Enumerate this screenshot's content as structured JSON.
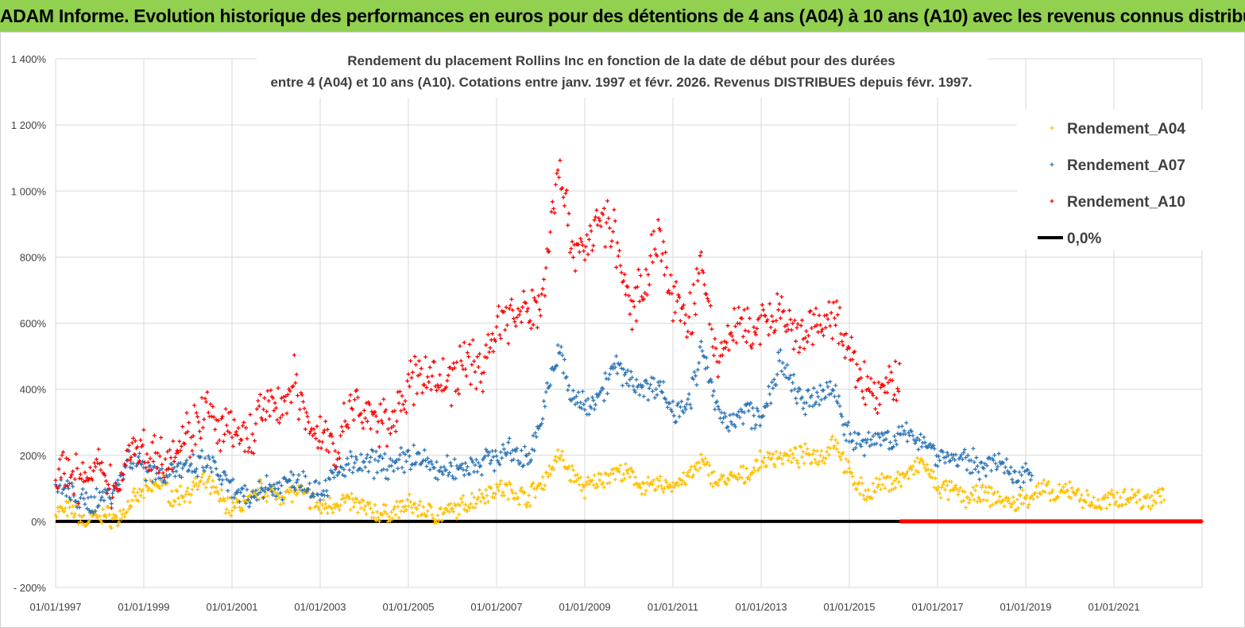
{
  "banner": {
    "text": "ADAM Informe. Evolution historique des performances en euros pour des détentions de 4 ans (A04) à 10 ans (A10) avec les revenus connus distribués",
    "background": "#92d050"
  },
  "chart_data": {
    "type": "scatter",
    "title": [
      "Rendement du placement Rollins Inc en fonction de la date de début pour des durées",
      "entre 4 (A04) et 10 ans (A10).  Cotations entre janv. 1997 et févr. 2026. Revenus DISTRIBUES depuis févr. 1997."
    ],
    "xlabel": "",
    "ylabel": "",
    "x_ticks": [
      "01/01/1997",
      "01/01/1999",
      "01/01/2001",
      "01/01/2003",
      "01/01/2005",
      "01/01/2007",
      "01/01/2009",
      "01/01/2011",
      "01/01/2013",
      "01/01/2015",
      "01/01/2017",
      "01/01/2019",
      "01/01/2021"
    ],
    "xlim": [
      "1997-01-01",
      "2023-01-01"
    ],
    "y_ticks": [
      "- 200%",
      "0%",
      "200%",
      "400%",
      "600%",
      "800%",
      "1 000%",
      "1 200%",
      "1 400%"
    ],
    "ylim": [
      -200,
      1400
    ],
    "grid": true,
    "legend_position": "top-right",
    "series": [
      {
        "name": "Rendement_A04",
        "color": "#ffc000",
        "marker": "+",
        "points": [
          [
            "1997-01-01",
            30
          ],
          [
            "1997-06-01",
            35
          ],
          [
            "1997-09-01",
            -5
          ],
          [
            "1998-01-01",
            25
          ],
          [
            "1998-06-01",
            5
          ],
          [
            "1998-09-01",
            50
          ],
          [
            "1999-01-01",
            90
          ],
          [
            "1999-06-01",
            120
          ],
          [
            "1999-09-01",
            70
          ],
          [
            "2000-01-01",
            90
          ],
          [
            "2000-06-01",
            120
          ],
          [
            "2000-09-01",
            80
          ],
          [
            "2001-01-01",
            40
          ],
          [
            "2001-06-01",
            60
          ],
          [
            "2001-09-01",
            100
          ],
          [
            "2002-01-01",
            80
          ],
          [
            "2002-06-01",
            90
          ],
          [
            "2002-09-01",
            80
          ],
          [
            "2003-01-01",
            40
          ],
          [
            "2003-06-01",
            60
          ],
          [
            "2003-09-01",
            60
          ],
          [
            "2004-01-01",
            40
          ],
          [
            "2004-06-01",
            20
          ],
          [
            "2004-09-01",
            30
          ],
          [
            "2005-01-01",
            50
          ],
          [
            "2005-06-01",
            30
          ],
          [
            "2005-09-01",
            20
          ],
          [
            "2006-01-01",
            30
          ],
          [
            "2006-06-01",
            60
          ],
          [
            "2006-09-01",
            80
          ],
          [
            "2007-01-01",
            100
          ],
          [
            "2007-06-01",
            90
          ],
          [
            "2007-09-01",
            70
          ],
          [
            "2008-01-01",
            110
          ],
          [
            "2008-06-01",
            200
          ],
          [
            "2008-09-01",
            150
          ],
          [
            "2009-01-01",
            100
          ],
          [
            "2009-06-01",
            130
          ],
          [
            "2009-09-01",
            150
          ],
          [
            "2010-01-01",
            140
          ],
          [
            "2010-06-01",
            100
          ],
          [
            "2010-09-01",
            110
          ],
          [
            "2011-01-01",
            110
          ],
          [
            "2011-06-01",
            140
          ],
          [
            "2011-09-01",
            180
          ],
          [
            "2012-01-01",
            120
          ],
          [
            "2012-06-01",
            130
          ],
          [
            "2012-09-01",
            140
          ],
          [
            "2013-01-01",
            180
          ],
          [
            "2013-06-01",
            200
          ],
          [
            "2013-09-01",
            190
          ],
          [
            "2014-01-01",
            200
          ],
          [
            "2014-06-01",
            200
          ],
          [
            "2014-09-01",
            250
          ],
          [
            "2015-01-01",
            140
          ],
          [
            "2015-06-01",
            80
          ],
          [
            "2015-09-01",
            110
          ],
          [
            "2016-01-01",
            120
          ],
          [
            "2016-06-01",
            150
          ],
          [
            "2016-09-01",
            180
          ],
          [
            "2017-01-01",
            100
          ],
          [
            "2017-06-01",
            90
          ],
          [
            "2017-09-01",
            70
          ],
          [
            "2018-01-01",
            80
          ],
          [
            "2018-06-01",
            70
          ],
          [
            "2018-09-01",
            50
          ],
          [
            "2019-01-01",
            70
          ],
          [
            "2019-06-01",
            100
          ],
          [
            "2019-09-01",
            70
          ],
          [
            "2020-01-01",
            100
          ],
          [
            "2020-06-01",
            60
          ],
          [
            "2020-09-01",
            50
          ],
          [
            "2021-01-01",
            70
          ],
          [
            "2021-06-01",
            80
          ],
          [
            "2021-09-01",
            60
          ],
          [
            "2022-01-01",
            80
          ],
          [
            "2022-03-01",
            90
          ]
        ]
      },
      {
        "name": "Rendement_A07",
        "color": "#2e75b6",
        "marker": "+",
        "points": [
          [
            "1997-01-01",
            100
          ],
          [
            "1997-06-01",
            80
          ],
          [
            "1997-09-01",
            50
          ],
          [
            "1998-01-01",
            70
          ],
          [
            "1998-06-01",
            110
          ],
          [
            "1998-09-01",
            200
          ],
          [
            "1999-01-01",
            170
          ],
          [
            "1999-06-01",
            140
          ],
          [
            "1999-09-01",
            160
          ],
          [
            "2000-01-01",
            150
          ],
          [
            "2000-06-01",
            180
          ],
          [
            "2000-09-01",
            150
          ],
          [
            "2001-01-01",
            90
          ],
          [
            "2001-06-01",
            60
          ],
          [
            "2001-09-01",
            110
          ],
          [
            "2002-01-01",
            100
          ],
          [
            "2002-06-01",
            130
          ],
          [
            "2002-09-01",
            120
          ],
          [
            "2003-01-01",
            90
          ],
          [
            "2003-06-01",
            150
          ],
          [
            "2003-09-01",
            170
          ],
          [
            "2004-01-01",
            170
          ],
          [
            "2004-06-01",
            180
          ],
          [
            "2004-09-01",
            160
          ],
          [
            "2005-01-01",
            200
          ],
          [
            "2005-06-01",
            180
          ],
          [
            "2005-09-01",
            150
          ],
          [
            "2006-01-01",
            160
          ],
          [
            "2006-06-01",
            170
          ],
          [
            "2006-09-01",
            180
          ],
          [
            "2007-01-01",
            200
          ],
          [
            "2007-06-01",
            210
          ],
          [
            "2007-09-01",
            180
          ],
          [
            "2008-01-01",
            300
          ],
          [
            "2008-06-01",
            530
          ],
          [
            "2008-09-01",
            380
          ],
          [
            "2009-01-01",
            350
          ],
          [
            "2009-06-01",
            400
          ],
          [
            "2009-09-01",
            470
          ],
          [
            "2010-01-01",
            430
          ],
          [
            "2010-06-01",
            400
          ],
          [
            "2010-09-01",
            420
          ],
          [
            "2011-01-01",
            330
          ],
          [
            "2011-06-01",
            380
          ],
          [
            "2011-09-01",
            520
          ],
          [
            "2012-01-01",
            330
          ],
          [
            "2012-06-01",
            300
          ],
          [
            "2012-09-01",
            340
          ],
          [
            "2013-01-01",
            300
          ],
          [
            "2013-06-01",
            480
          ],
          [
            "2013-09-01",
            420
          ],
          [
            "2014-01-01",
            350
          ],
          [
            "2014-06-01",
            390
          ],
          [
            "2014-09-01",
            400
          ],
          [
            "2015-01-01",
            250
          ],
          [
            "2015-06-01",
            230
          ],
          [
            "2015-09-01",
            260
          ],
          [
            "2016-01-01",
            250
          ],
          [
            "2016-06-01",
            260
          ],
          [
            "2016-09-01",
            250
          ],
          [
            "2017-01-01",
            200
          ],
          [
            "2017-06-01",
            190
          ],
          [
            "2017-09-01",
            180
          ],
          [
            "2018-01-01",
            170
          ],
          [
            "2018-06-01",
            180
          ],
          [
            "2018-09-01",
            130
          ],
          [
            "2019-01-01",
            160
          ],
          [
            "2019-03-01",
            150
          ]
        ]
      },
      {
        "name": "Rendement_A10",
        "color": "#ff0000",
        "marker": "+",
        "points": [
          [
            "1997-01-01",
            150
          ],
          [
            "1997-06-01",
            140
          ],
          [
            "1997-09-01",
            120
          ],
          [
            "1998-01-01",
            150
          ],
          [
            "1998-06-01",
            90
          ],
          [
            "1998-09-01",
            230
          ],
          [
            "1999-01-01",
            210
          ],
          [
            "1999-06-01",
            200
          ],
          [
            "1999-09-01",
            220
          ],
          [
            "2000-01-01",
            260
          ],
          [
            "2000-06-01",
            340
          ],
          [
            "2000-09-01",
            270
          ],
          [
            "2001-01-01",
            270
          ],
          [
            "2001-06-01",
            240
          ],
          [
            "2001-09-01",
            350
          ],
          [
            "2002-01-01",
            330
          ],
          [
            "2002-06-01",
            420
          ],
          [
            "2002-09-01",
            310
          ],
          [
            "2003-01-01",
            260
          ],
          [
            "2003-06-01",
            220
          ],
          [
            "2003-09-01",
            340
          ],
          [
            "2004-01-01",
            330
          ],
          [
            "2004-06-01",
            290
          ],
          [
            "2004-09-01",
            320
          ],
          [
            "2005-01-01",
            400
          ],
          [
            "2005-06-01",
            460
          ],
          [
            "2005-09-01",
            420
          ],
          [
            "2006-01-01",
            430
          ],
          [
            "2006-06-01",
            500
          ],
          [
            "2006-09-01",
            450
          ],
          [
            "2007-01-01",
            600
          ],
          [
            "2007-06-01",
            620
          ],
          [
            "2007-09-01",
            630
          ],
          [
            "2008-01-01",
            650
          ],
          [
            "2008-06-01",
            1100
          ],
          [
            "2008-09-01",
            850
          ],
          [
            "2009-01-01",
            830
          ],
          [
            "2009-06-01",
            920
          ],
          [
            "2009-09-01",
            870
          ],
          [
            "2010-01-01",
            640
          ],
          [
            "2010-06-01",
            750
          ],
          [
            "2010-09-01",
            880
          ],
          [
            "2011-01-01",
            660
          ],
          [
            "2011-06-01",
            620
          ],
          [
            "2011-09-01",
            780
          ],
          [
            "2012-01-01",
            480
          ],
          [
            "2012-06-01",
            600
          ],
          [
            "2012-09-01",
            570
          ],
          [
            "2013-01-01",
            590
          ],
          [
            "2013-06-01",
            630
          ],
          [
            "2013-09-01",
            560
          ],
          [
            "2014-01-01",
            560
          ],
          [
            "2014-06-01",
            600
          ],
          [
            "2014-09-01",
            620
          ],
          [
            "2015-01-01",
            500
          ],
          [
            "2015-06-01",
            400
          ],
          [
            "2015-09-01",
            370
          ],
          [
            "2016-01-01",
            430
          ],
          [
            "2016-03-01",
            440
          ]
        ]
      },
      {
        "name": "0,0%",
        "color": "#000000",
        "marker": "line",
        "points": [
          [
            "1997-01-01",
            0
          ],
          [
            "2023-01-01",
            0
          ]
        ]
      }
    ],
    "a10_zero_markers": {
      "color": "#ff0000",
      "from": "2016-03-01",
      "to": "2023-01-01",
      "value": 0
    }
  }
}
